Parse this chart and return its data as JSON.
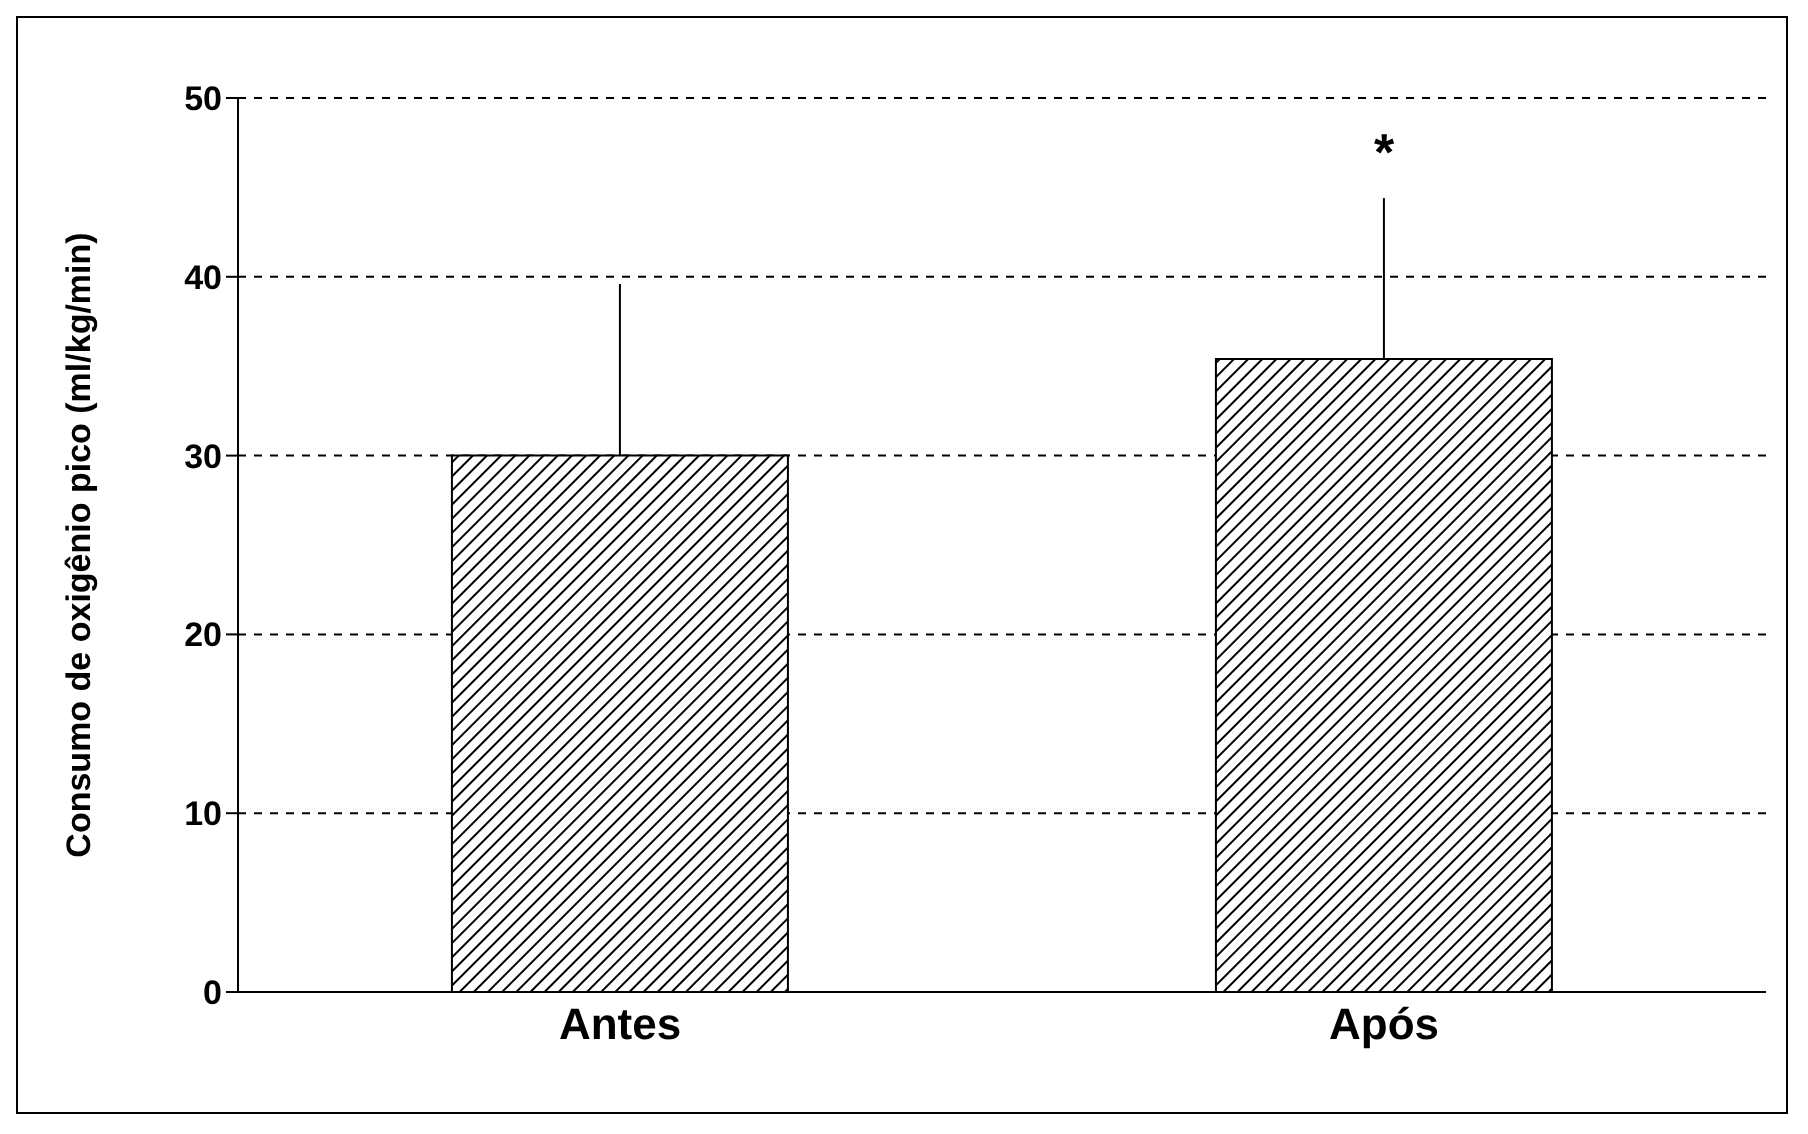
{
  "chart_data": {
    "type": "bar",
    "ylabel": "Consumo de oxigênio pico (ml/kg/min)",
    "categories": [
      "Antes",
      "Após"
    ],
    "values": [
      30,
      35.4
    ],
    "color": "#000000",
    "errors": [
      [
        30,
        39.6
      ],
      [
        35.4,
        44.4
      ]
    ],
    "ylim": [
      0,
      50
    ],
    "yticks": [
      0,
      10,
      20,
      30,
      40,
      50
    ],
    "grid": "y",
    "annotations": [
      "*"
    ]
  }
}
